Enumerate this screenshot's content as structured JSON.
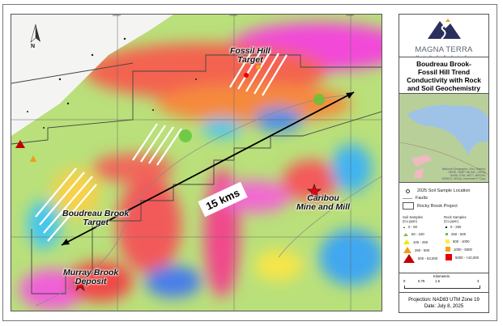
{
  "map": {
    "labels": {
      "fossil_hill": [
        "Fossil Hill",
        "Target"
      ],
      "caribou": [
        "Caribou",
        "Mine and Mill"
      ],
      "boudreau": [
        "Boudreau Brook",
        "Target"
      ],
      "murray": [
        "Murray Brook",
        "Deposit"
      ]
    },
    "distance_label": "15 kms",
    "north_label": "N",
    "grid_ticks_x": [
      "695000",
      "700000",
      "705000"
    ]
  },
  "panel": {
    "logo": {
      "name": "MAGNA TERRA",
      "sub": "MINERALS"
    },
    "title": [
      "Boudreau Brook-",
      "Fossil Hill Trend",
      "Conductivity with Rock",
      "and Soil Geochemistry"
    ],
    "inset_credit": "National Geographic, Esri, Garmin, HERE, UNEP-WCMC, USGS, NASA, ESA, METI, NRCAN, GEBCO, NOAA, increment P Corp.",
    "legend": {
      "soil_location": "2025 Soil Sample Location",
      "faults": "Faults",
      "project": "Rocky Brook Project",
      "soil_header": [
        "Soil Samples",
        "(Cu ppm)"
      ],
      "rock_header": [
        "Rock Samples",
        "(Cu ppm)"
      ],
      "soil_classes": [
        "0 - 50",
        "50 - 100",
        "100 - 250",
        "250 - 500",
        "500 - 53,000"
      ],
      "rock_classes": [
        "0 - 250",
        "250 - 500",
        "500 - 1000",
        "1000 - 5000",
        "5000 - >10,000"
      ]
    },
    "scale": {
      "title": "Kilometers",
      "ticks": [
        "0",
        "0.75",
        "1.5",
        "3"
      ]
    },
    "projection": "Projection: NAD83 UTM Zone 19",
    "date": "Date: July 8, 2025"
  },
  "colors": {
    "soil": [
      "#222222",
      "#7ac143",
      "#f2e600",
      "#f39c12",
      "#c00000"
    ],
    "rock": [
      "#111111",
      "#5cc639",
      "#f7f04a",
      "#f3a21b",
      "#e60000"
    ]
  }
}
